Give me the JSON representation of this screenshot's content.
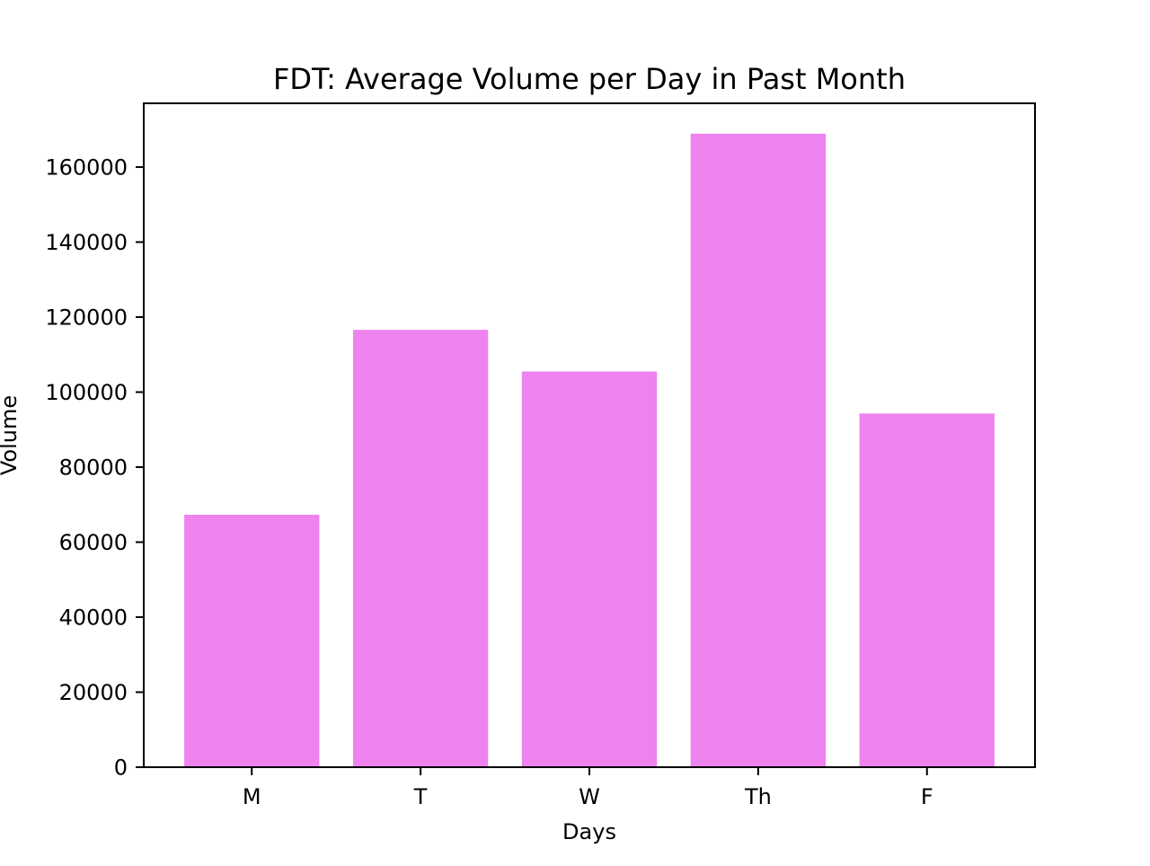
{
  "chart_data": {
    "type": "bar",
    "title": "FDT: Average Volume per Day in Past Month",
    "xlabel": "Days",
    "ylabel": "Volume",
    "categories": [
      "M",
      "T",
      "W",
      "Th",
      "F"
    ],
    "values": [
      67300,
      116600,
      105500,
      168900,
      94300
    ],
    "ylim": [
      0,
      177000
    ],
    "yticks": [
      0,
      20000,
      40000,
      60000,
      80000,
      100000,
      120000,
      140000,
      160000
    ],
    "ytick_labels": [
      "0",
      "20000",
      "40000",
      "60000",
      "80000",
      "100000",
      "120000",
      "140000",
      "160000"
    ],
    "bar_color": "#ee82ee",
    "grid": false,
    "legend": "none"
  }
}
